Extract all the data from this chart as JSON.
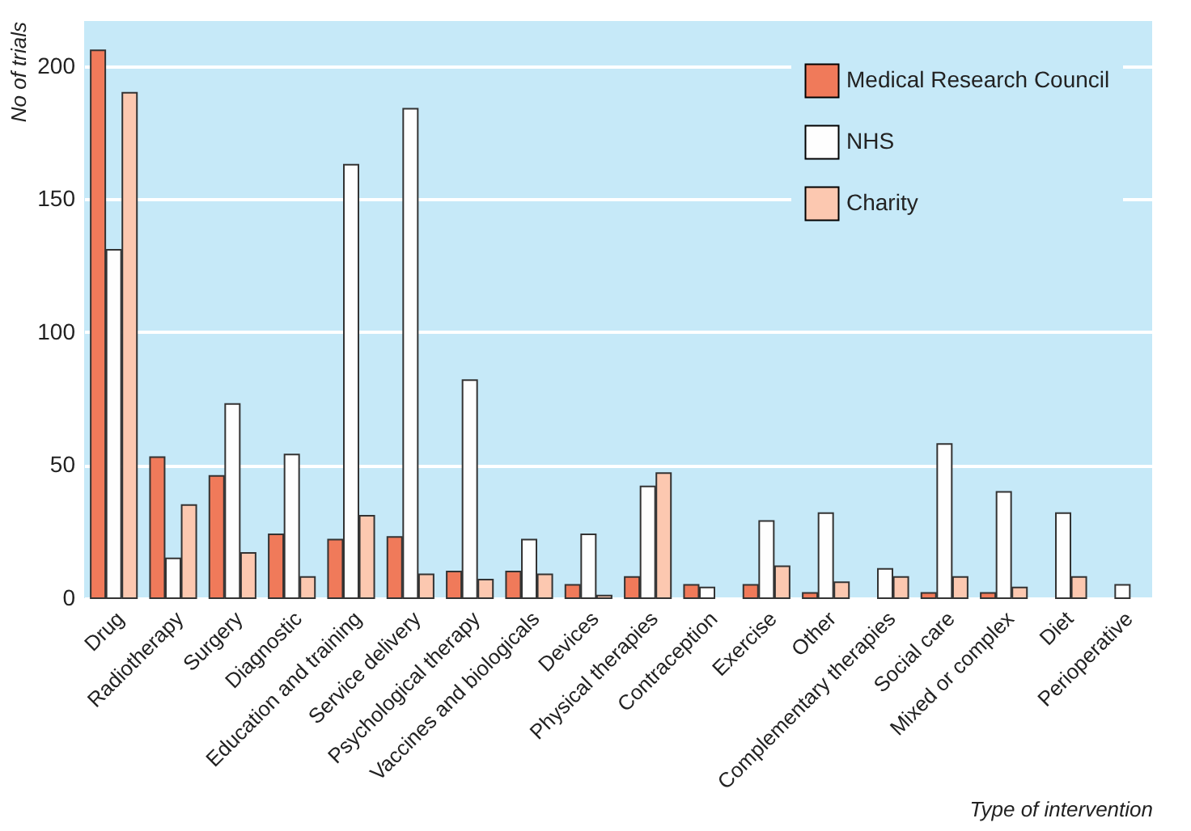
{
  "chart_data": {
    "type": "bar",
    "xlabel": "Type of intervention",
    "ylabel": "No of trials",
    "categories": [
      "Drug",
      "Radiotherapy",
      "Surgery",
      "Diagnostic",
      "Education and training",
      "Service delivery",
      "Psychological therapy",
      "Vaccines and biologicals",
      "Devices",
      "Physical therapies",
      "Contraception",
      "Exercise",
      "Other",
      "Complementary therapies",
      "Social care",
      "Mixed or complex",
      "Diet",
      "Perioperative"
    ],
    "series": [
      {
        "name": "Medical Research Council",
        "color": "#f07a5a",
        "values": [
          206,
          53,
          46,
          24,
          22,
          23,
          10,
          10,
          5,
          8,
          5,
          5,
          2,
          null,
          2,
          2,
          null,
          null
        ]
      },
      {
        "name": "NHS",
        "color": "#fefefe",
        "values": [
          131,
          15,
          73,
          54,
          163,
          184,
          82,
          22,
          24,
          42,
          4,
          29,
          32,
          11,
          58,
          40,
          32,
          5
        ]
      },
      {
        "name": "Charity",
        "color": "#fcc8b0",
        "values": [
          190,
          35,
          17,
          8,
          31,
          9,
          7,
          9,
          1,
          47,
          null,
          12,
          6,
          8,
          8,
          4,
          8,
          null
        ]
      }
    ],
    "ylim": [
      0,
      217
    ],
    "yticks": [
      0,
      50,
      100,
      150,
      200
    ],
    "grid": "y",
    "legend": "top right"
  }
}
